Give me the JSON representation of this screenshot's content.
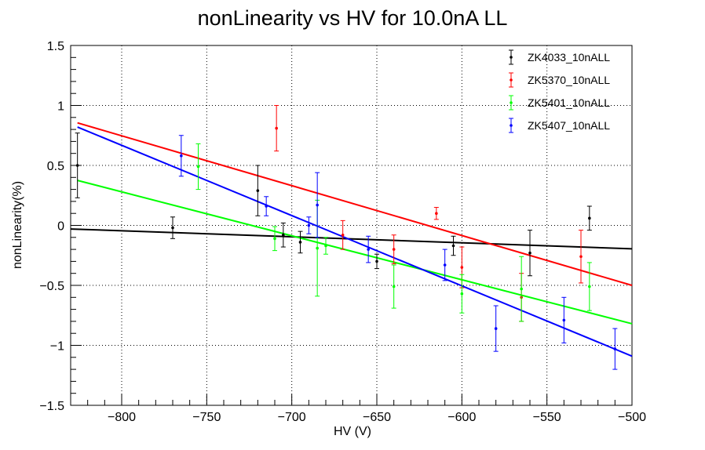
{
  "chart_data": {
    "type": "scatter",
    "title": "nonLinearity vs HV for 10.0nA LL",
    "xlabel": "HV (V)",
    "ylabel": "nonLinearity(%)",
    "xlim": [
      -830,
      -500
    ],
    "ylim": [
      -1.5,
      1.5
    ],
    "x_ticks": [
      -800,
      -750,
      -700,
      -650,
      -600,
      -550,
      -500
    ],
    "x_tick_labels": [
      "−800",
      "−750",
      "−700",
      "−650",
      "−600",
      "−550",
      "−500"
    ],
    "y_ticks": [
      -1.5,
      -1,
      -0.5,
      0,
      0.5,
      1,
      1.5
    ],
    "y_tick_labels": [
      "−1.5",
      "−1",
      "−0.5",
      "0",
      "0.5",
      "1",
      "1.5"
    ],
    "grid": true,
    "legend_position": "top-right",
    "series": [
      {
        "name": "ZK4033_10nALL",
        "color": "#000000",
        "points": [
          {
            "x": -826,
            "y": 0.5,
            "err": 0.27
          },
          {
            "x": -770,
            "y": -0.02,
            "err": 0.09
          },
          {
            "x": -720,
            "y": 0.29,
            "err": 0.21
          },
          {
            "x": -705,
            "y": -0.08,
            "err": 0.1
          },
          {
            "x": -695,
            "y": -0.14,
            "err": 0.09
          },
          {
            "x": -650,
            "y": -0.3,
            "err": 0.06
          },
          {
            "x": -605,
            "y": -0.17,
            "err": 0.08
          },
          {
            "x": -560,
            "y": -0.23,
            "err": 0.19
          },
          {
            "x": -525,
            "y": 0.06,
            "err": 0.1
          }
        ],
        "fit": [
          [
            -830,
            -0.03
          ],
          [
            -500,
            -0.195
          ]
        ]
      },
      {
        "name": "ZK5370_10nALL",
        "color": "#ff0000",
        "points": [
          {
            "x": -709,
            "y": 0.81,
            "err": 0.19
          },
          {
            "x": -670,
            "y": -0.08,
            "err": 0.12
          },
          {
            "x": -640,
            "y": -0.2,
            "err": 0.12
          },
          {
            "x": -615,
            "y": 0.1,
            "err": 0.05
          },
          {
            "x": -600,
            "y": -0.35,
            "err": 0.17
          },
          {
            "x": -565,
            "y": -0.6,
            "err": 0.2
          },
          {
            "x": -530,
            "y": -0.26,
            "err": 0.22
          }
        ],
        "fit": [
          [
            -826,
            0.855
          ],
          [
            -500,
            -0.5
          ]
        ]
      },
      {
        "name": "ZK5401_10nALL",
        "color": "#00ff00",
        "points": [
          {
            "x": -755,
            "y": 0.49,
            "err": 0.19
          },
          {
            "x": -710,
            "y": -0.11,
            "err": 0.1
          },
          {
            "x": -685,
            "y": -0.19,
            "err": 0.4
          },
          {
            "x": -680,
            "y": -0.17,
            "err": 0.07
          },
          {
            "x": -640,
            "y": -0.51,
            "err": 0.18
          },
          {
            "x": -600,
            "y": -0.57,
            "err": 0.16
          },
          {
            "x": -565,
            "y": -0.53,
            "err": 0.27
          },
          {
            "x": -525,
            "y": -0.51,
            "err": 0.2
          }
        ],
        "fit": [
          [
            -826,
            0.375
          ],
          [
            -500,
            -0.82
          ]
        ]
      },
      {
        "name": "ZK5407_10nALL",
        "color": "#0000ff",
        "points": [
          {
            "x": -765,
            "y": 0.58,
            "err": 0.17
          },
          {
            "x": -715,
            "y": 0.16,
            "err": 0.08
          },
          {
            "x": -690,
            "y": 0.0,
            "err": 0.07
          },
          {
            "x": -685,
            "y": 0.17,
            "err": 0.27
          },
          {
            "x": -655,
            "y": -0.2,
            "err": 0.11
          },
          {
            "x": -610,
            "y": -0.33,
            "err": 0.13
          },
          {
            "x": -580,
            "y": -0.86,
            "err": 0.19
          },
          {
            "x": -540,
            "y": -0.79,
            "err": 0.19
          },
          {
            "x": -510,
            "y": -1.03,
            "err": 0.17
          }
        ],
        "fit": [
          [
            -826,
            0.82
          ],
          [
            -500,
            -1.09
          ]
        ]
      }
    ]
  }
}
